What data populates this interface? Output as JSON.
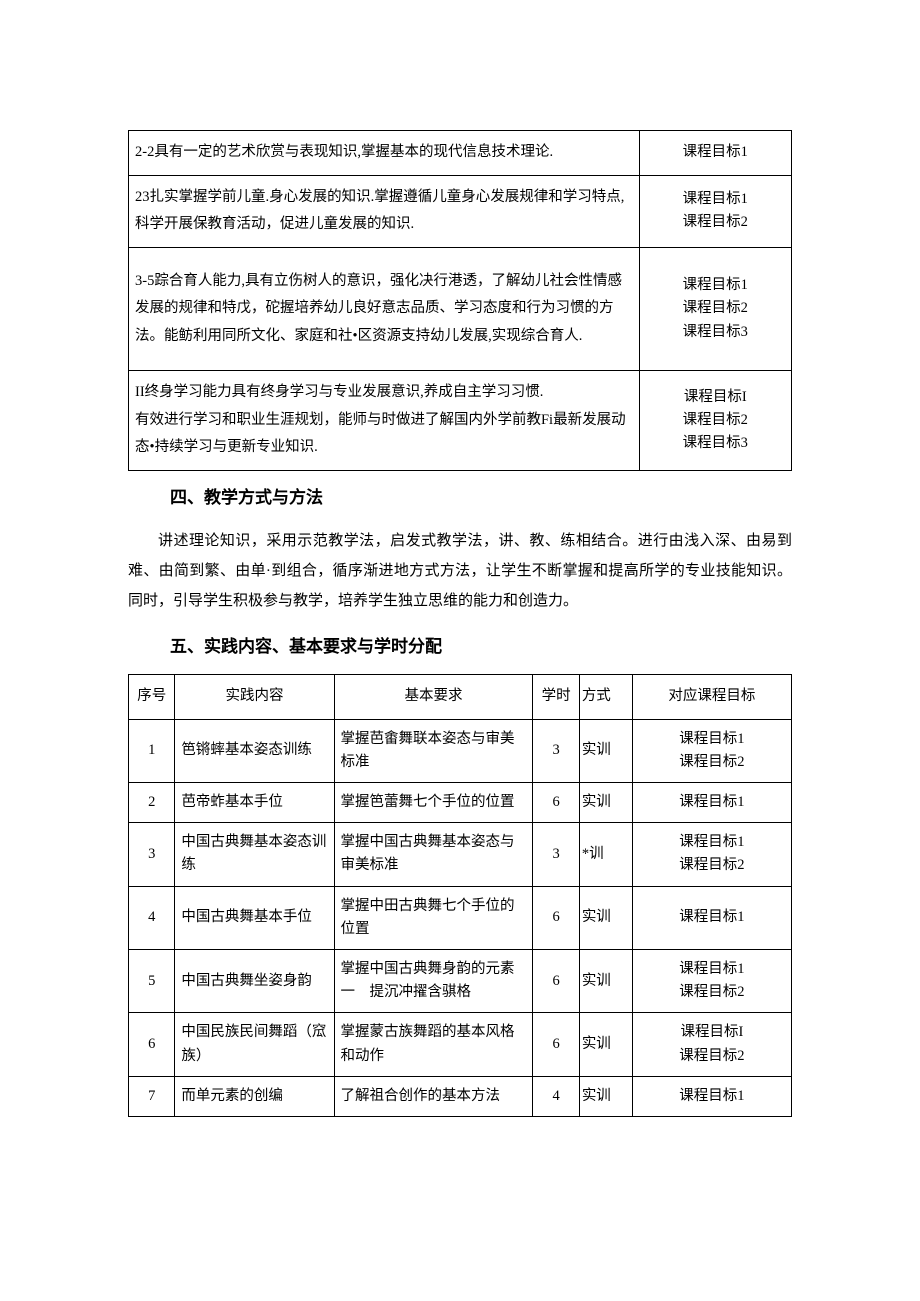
{
  "table1": {
    "rows": [
      {
        "desc": "2-2具有一定的艺术欣赏与表现知识,掌握基本的现代信息技术理论.",
        "goal": "课程目标1",
        "tall": false
      },
      {
        "desc": "23扎实掌握学前儿童.身心发展的知识.掌握遵循儿童身心发展规律和学习特点,科学开展保教育活动，促进儿童发展的知识.",
        "goal": "课程目标1\n课程目标2",
        "tall": false
      },
      {
        "desc": "3-5踪合育人能力,具有立伤树人的意识，强化决行港透，了解幼儿社会性情感发展的规律和特戊，砣握培养幼儿良好意志品质、学习态度和行为习惯的方法。能鲂利用同所文化、家庭和社•区资源支持幼儿发展,实现综合育人.",
        "goal": "课程目标1\n课程目标2\n课程目标3",
        "tall": true
      },
      {
        "desc": "II终身学习能力具有终身学习与专业发展意识,养成自主学习习惯.\n有效进行学习和职业生涯规划，能师与时做进了解国内外学前教Fi最新发展动态•持续学习与更新专业知识.",
        "goal": "课程目标I\n课程目标2\n课程目标3",
        "tall": false
      }
    ]
  },
  "section4": {
    "heading": "四、教学方式与方法",
    "paragraph": "讲述理论知识，采用示范教学法，启发式教学法，讲、教、练相结合。进行由浅入深、由易到难、由简到繁、由单·到组合，循序渐进地方式方法，让学生不断掌握和提高所学的专业技能知识。同时，引导学生积极参与教学，培养学生独立思维的能力和创造力。"
  },
  "section5": {
    "heading": "五、实践内容、基本要求与学时分配"
  },
  "table2": {
    "headers": [
      "序号",
      "实践内容",
      "基本要求",
      "学时",
      "方式",
      "对应课程目标"
    ],
    "rows": [
      {
        "num": "1",
        "content": "笆锵蟀基本姿态训练",
        "req": "掌握芭畬舞联本姿态与审美标准",
        "hours": "3",
        "mode": "实训",
        "goal": "课程目标1\n课程目标2"
      },
      {
        "num": "2",
        "content": "芭帝蚱基本手位",
        "req": "掌握笆蕾舞七个手位的位置",
        "hours": "6",
        "mode": "实训",
        "goal": "课程目标1"
      },
      {
        "num": "3",
        "content": "中国古典舞基本姿态训练",
        "req": "掌握中国古典舞基本姿态与审美标准",
        "hours": "3",
        "mode": "*训",
        "goal": "课程目标1\n课程目标2"
      },
      {
        "num": "4",
        "content": "中国古典舞基本手位",
        "req": "掌握中田古典舞七个手位的位置",
        "hours": "6",
        "mode": "实训",
        "goal": "课程目标1"
      },
      {
        "num": "5",
        "content": "中国古典舞坐姿身韵",
        "req": "掌握中国古典舞身韵的元素一　提沉冲擢含骐格",
        "hours": "6",
        "mode": "实训",
        "goal": "课程目标1\n课程目标2"
      },
      {
        "num": "6",
        "content": "中国民族民间舞蹈（窊族）",
        "req": "掌握蒙古族舞蹈的基本风格和动作",
        "hours": "6",
        "mode": "实训",
        "goal": "课程目标I\n课程目标2"
      },
      {
        "num": "7",
        "content": "而单元素的创编",
        "req": "了解祖合创作的基本方法",
        "hours": "4",
        "mode": "实训",
        "goal": "课程目标1"
      }
    ]
  }
}
